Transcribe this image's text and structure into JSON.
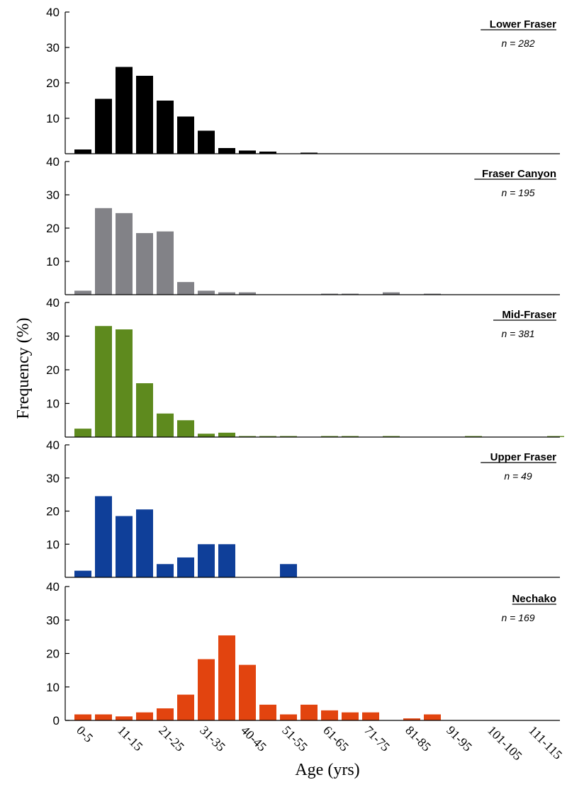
{
  "chart_data": {
    "type": "bar",
    "ylabel": "Frequency (%)",
    "xlabel": "Age (yrs)",
    "ylim": [
      0,
      40
    ],
    "yticks": [
      10,
      20,
      30,
      40
    ],
    "bottom_yticks": [
      0,
      10,
      20,
      30,
      40
    ],
    "categories": [
      "0-5",
      "6-10",
      "11-15",
      "16-20",
      "21-25",
      "26-30",
      "31-35",
      "36-40",
      "40-45",
      "46-50",
      "51-55",
      "56-60",
      "61-65",
      "66-70",
      "71-75",
      "76-80",
      "81-85",
      "86-90",
      "91-95",
      "96-100",
      "101-105",
      "106-110",
      "111-115",
      "116-120"
    ],
    "x_tick_labels": [
      "0-5",
      "11-15",
      "21-25",
      "31-35",
      "40-45",
      "51-55",
      "61-65",
      "71-75",
      "81-85",
      "91-95",
      "101-105",
      "111-115"
    ],
    "series": [
      {
        "name": "Lower Fraser",
        "n_label": "n = 282",
        "color": "#000000",
        "values": [
          1.2,
          15.5,
          24.5,
          22,
          15,
          10.5,
          6.5,
          1.6,
          0.9,
          0.6,
          0,
          0.3,
          0,
          0,
          0,
          0,
          0,
          0,
          0,
          0,
          0,
          0,
          0,
          0
        ]
      },
      {
        "name": "Fraser Canyon",
        "n_label": "n = 195",
        "color": "#828287",
        "values": [
          1.2,
          26,
          24.5,
          18.5,
          19,
          3.8,
          1.2,
          0.7,
          0.7,
          0,
          0,
          0,
          0.3,
          0.3,
          0,
          0.7,
          0,
          0.3,
          0,
          0,
          0,
          0,
          0,
          0
        ]
      },
      {
        "name": "Mid-Fraser",
        "n_label": "n = 381",
        "color": "#5e8a1e",
        "values": [
          2.5,
          33,
          32,
          16,
          7,
          5,
          1,
          1.3,
          0.3,
          0.3,
          0.3,
          0,
          0.3,
          0.3,
          0,
          0.3,
          0,
          0,
          0,
          0.3,
          0,
          0,
          0,
          0.3
        ]
      },
      {
        "name": "Upper Fraser",
        "n_label": "n = 49",
        "color": "#0f3f99",
        "values": [
          2,
          24.5,
          18.5,
          20.5,
          4,
          6,
          10,
          10,
          0,
          0,
          4,
          0,
          0,
          0,
          0,
          0,
          0,
          0,
          0,
          0,
          0,
          0,
          0,
          0
        ]
      },
      {
        "name": "Nechako",
        "n_label": "n = 169",
        "color": "#e2440f",
        "values": [
          1.8,
          1.8,
          1.2,
          2.4,
          3.6,
          7.7,
          18.3,
          25.4,
          16.6,
          4.7,
          1.8,
          4.7,
          3,
          2.4,
          2.4,
          0,
          0.6,
          1.8,
          0,
          0,
          0,
          0,
          0,
          0
        ]
      }
    ]
  }
}
